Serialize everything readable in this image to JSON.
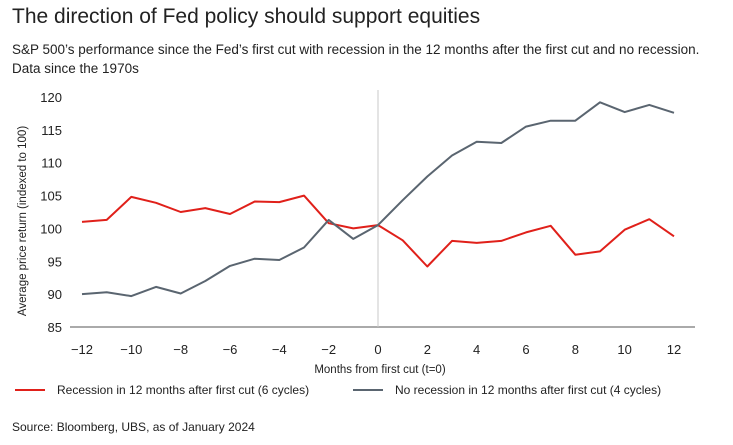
{
  "header": {
    "title": "The direction of Fed policy should support equities",
    "subtitle": "S&P 500’s performance since the Fed’s first cut with recession in the 12 months after the first cut and no recession. Data since the 1970s"
  },
  "footer": {
    "source": "Source: Bloomberg, UBS, as of January 2024"
  },
  "chart_data": {
    "type": "line",
    "xlabel": "Months from first cut (t=0)",
    "ylabel": "Average price return (indexed to 100)",
    "xlim": [
      -12,
      12
    ],
    "ylim": [
      85,
      120
    ],
    "x_ticks": [
      -12,
      -10,
      -8,
      -6,
      -4,
      -2,
      0,
      2,
      4,
      6,
      8,
      10,
      12
    ],
    "x_tick_labels": [
      "−12",
      "−10",
      "−8",
      "−6",
      "−4",
      "−2",
      "0",
      "2",
      "4",
      "6",
      "8",
      "10",
      "12"
    ],
    "y_ticks": [
      85,
      90,
      95,
      100,
      105,
      110,
      115,
      120
    ],
    "y_tick_labels": [
      "85",
      "90",
      "95",
      "100",
      "105",
      "110",
      "115",
      "120"
    ],
    "grid": false,
    "reference_line_x": 0,
    "legend_position": "bottom",
    "x": [
      -12,
      -11,
      -10,
      -9,
      -8,
      -7,
      -6,
      -5,
      -4,
      -3,
      -2,
      -1,
      0,
      1,
      2,
      3,
      4,
      5,
      6,
      7,
      8,
      9,
      10,
      11,
      12
    ],
    "series": [
      {
        "name": "Recession in 12 months after first cut (6 cycles)",
        "color": "#e0201a",
        "values": [
          101.0,
          101.3,
          104.8,
          103.9,
          102.5,
          103.1,
          102.2,
          104.1,
          104.0,
          105.0,
          100.8,
          100.0,
          100.5,
          98.2,
          94.2,
          98.1,
          97.8,
          98.1,
          99.4,
          100.4,
          96.0,
          96.5,
          99.8,
          101.4,
          98.8
        ]
      },
      {
        "name": "No recession in 12 months after first cut (4 cycles)",
        "color": "#5a6570",
        "values": [
          90.0,
          90.3,
          89.7,
          91.1,
          90.1,
          92.0,
          94.3,
          95.4,
          95.2,
          97.1,
          101.3,
          98.4,
          100.5,
          104.3,
          107.9,
          111.1,
          113.2,
          113.0,
          115.5,
          116.4,
          116.4,
          119.2,
          117.7,
          118.8,
          117.6
        ]
      }
    ]
  }
}
